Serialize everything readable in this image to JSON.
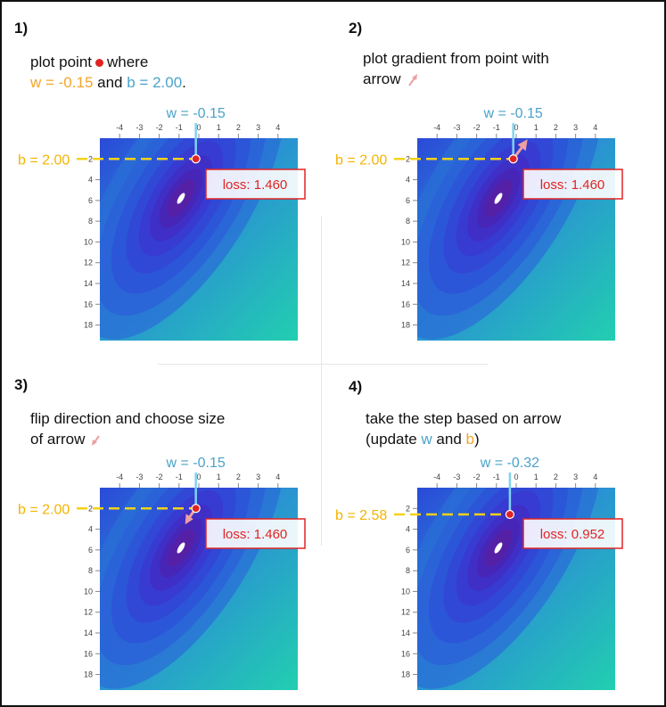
{
  "panels": [
    {
      "number": "1)",
      "caption": {
        "line1_a": "plot point",
        "line1_b": "where",
        "w_text": "w = -0.15",
        "and_text": "and",
        "b_text": "b = 2.00",
        "tail": "."
      },
      "w_label": "w = -0.15",
      "b_label": "b = 2.00",
      "loss_label": "loss: 1.460",
      "point": {
        "w": -0.15,
        "b": 2.0
      },
      "arrow": "none",
      "x_ticks": [
        "-4",
        "-3",
        "-2",
        "-1",
        "0",
        "1",
        "2",
        "3",
        "4"
      ],
      "y_ticks": [
        "2",
        "4",
        "6",
        "8",
        "10",
        "12",
        "14",
        "16",
        "18"
      ]
    },
    {
      "number": "2)",
      "caption": {
        "line1": "plot gradient from point with",
        "line2": "arrow"
      },
      "w_label": "w = -0.15",
      "b_label": "b = 2.00",
      "loss_label": "loss: 1.460",
      "point": {
        "w": -0.15,
        "b": 2.0
      },
      "arrow": "gradient",
      "x_ticks": [
        "-4",
        "-3",
        "-2",
        "-1",
        "0",
        "1",
        "2",
        "3",
        "4"
      ],
      "y_ticks": [
        "2",
        "4",
        "6",
        "8",
        "10",
        "12",
        "14",
        "16",
        "18"
      ]
    },
    {
      "number": "3)",
      "caption": {
        "line1": "flip direction and choose size",
        "line2": "of arrow"
      },
      "w_label": "w = -0.15",
      "b_label": "b = 2.00",
      "loss_label": "loss: 1.460",
      "point": {
        "w": -0.15,
        "b": 2.0
      },
      "arrow": "step",
      "x_ticks": [
        "-4",
        "-3",
        "-2",
        "-1",
        "0",
        "1",
        "2",
        "3",
        "4"
      ],
      "y_ticks": [
        "2",
        "4",
        "6",
        "8",
        "10",
        "12",
        "14",
        "16",
        "18"
      ]
    },
    {
      "number": "4)",
      "caption": {
        "line1": "take the step based on arrow",
        "line2_a": "(update",
        "w_text": "w",
        "and_text": "and",
        "b_text": "b",
        "tail": ")"
      },
      "w_label": "w = -0.32",
      "b_label": "b = 2.58",
      "loss_label": "loss: 0.952",
      "point": {
        "w": -0.32,
        "b": 2.58
      },
      "arrow": "none",
      "x_ticks": [
        "-4",
        "-3",
        "-2",
        "-1",
        "0",
        "1",
        "2",
        "3",
        "4"
      ],
      "y_ticks": [
        "2",
        "4",
        "6",
        "8",
        "10",
        "12",
        "14",
        "16",
        "18"
      ]
    }
  ],
  "colors": {
    "w_blue": "#4aa3c9",
    "b_orange": "#f4a52a",
    "dashed_yellow": "#f2d21a",
    "point_red": "#e02424",
    "loss_box_red": "#e02424",
    "arrow_pink": "#eda0a0",
    "contour_low": "#5a1fa0",
    "contour_high": "#22cfb0"
  }
}
